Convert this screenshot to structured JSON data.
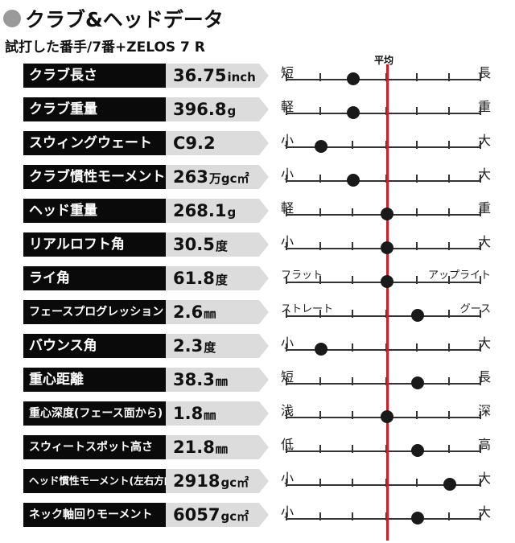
{
  "header": {
    "title": "クラブ&ヘッドデータ",
    "subtitle": "試打した番手/7番+ZELOS 7 R",
    "average_label": "平均"
  },
  "colors": {
    "label_bg": "#0a0a0a",
    "value_bg": "#dcdcdc",
    "average_line": "#c8202a",
    "marker": "#1a1a1a",
    "title_dot": "#9a9a9a"
  },
  "rows": [
    {
      "label": "クラブ長さ",
      "value": "36.75",
      "unit": "inch",
      "left": "短",
      "right": "長",
      "position": 2
    },
    {
      "label": "クラブ重量",
      "value": "396.8",
      "unit": "g",
      "left": "軽",
      "right": "重",
      "position": 2
    },
    {
      "label": "スウィングウェート",
      "value": "C9.2",
      "unit": "",
      "left": "小",
      "right": "大",
      "position": 1
    },
    {
      "label": "クラブ慣性モーメント",
      "value": "263",
      "unit": "万gc㎡",
      "left": "小",
      "right": "大",
      "position": 2
    },
    {
      "label": "ヘッド重量",
      "value": "268.1",
      "unit": "g",
      "left": "軽",
      "right": "重",
      "position": 3
    },
    {
      "label": "リアルロフト角",
      "value": "30.5",
      "unit": "度",
      "left": "小",
      "right": "大",
      "position": 3
    },
    {
      "label": "ライ角",
      "value": "61.8",
      "unit": "度",
      "left": "フラット",
      "right": "アップライト",
      "position": 3
    },
    {
      "label": "フェースプログレッション",
      "value": "2.6",
      "unit": "㎜",
      "left": "ストレート",
      "right": "グース",
      "position": 4
    },
    {
      "label": "バウンス角",
      "value": "2.3",
      "unit": "度",
      "left": "小",
      "right": "大",
      "position": 1
    },
    {
      "label": "重心距離",
      "value": "38.3",
      "unit": "㎜",
      "left": "短",
      "right": "長",
      "position": 4
    },
    {
      "label": "重心深度(フェース面から)",
      "value": "1.8",
      "unit": "㎜",
      "left": "浅",
      "right": "深",
      "position": 3
    },
    {
      "label": "スウィートスポット高さ",
      "value": "21.8",
      "unit": "㎜",
      "left": "低",
      "right": "高",
      "position": 4
    },
    {
      "label": "ヘッド慣性モーメント(左右方向)",
      "value": "2918",
      "unit": "gc㎡",
      "left": "小",
      "right": "大",
      "position": 5
    },
    {
      "label": "ネック軸回りモーメント",
      "value": "6057",
      "unit": "gc㎡",
      "left": "小",
      "right": "大",
      "position": 4
    }
  ]
}
